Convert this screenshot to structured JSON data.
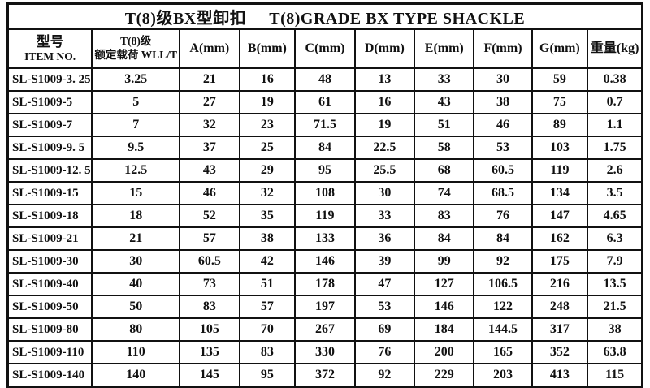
{
  "title": {
    "cn": "T(8)级BX型卸扣",
    "en": "T(8)GRADE BX TYPE SHACKLE"
  },
  "table": {
    "header": {
      "item_no_cn": "型号",
      "item_no_en": "ITEM NO.",
      "wll_cn": "T(8)级",
      "wll_en": "额定载荷 WLL/T",
      "columns": [
        "A(mm)",
        "B(mm)",
        "C(mm)",
        "D(mm)",
        "E(mm)",
        "F(mm)",
        "G(mm)",
        "重量(kg)"
      ]
    },
    "rows": [
      {
        "item_no": "SL-S1009-3. 25",
        "wll": "3.25",
        "a": "21",
        "b": "16",
        "c": "48",
        "d": "13",
        "e": "33",
        "f": "30",
        "g": "59",
        "weight": "0.38"
      },
      {
        "item_no": "SL-S1009-5",
        "wll": "5",
        "a": "27",
        "b": "19",
        "c": "61",
        "d": "16",
        "e": "43",
        "f": "38",
        "g": "75",
        "weight": "0.7"
      },
      {
        "item_no": "SL-S1009-7",
        "wll": "7",
        "a": "32",
        "b": "23",
        "c": "71.5",
        "d": "19",
        "e": "51",
        "f": "46",
        "g": "89",
        "weight": "1.1"
      },
      {
        "item_no": "SL-S1009-9. 5",
        "wll": "9.5",
        "a": "37",
        "b": "25",
        "c": "84",
        "d": "22.5",
        "e": "58",
        "f": "53",
        "g": "103",
        "weight": "1.75"
      },
      {
        "item_no": "SL-S1009-12. 5",
        "wll": "12.5",
        "a": "43",
        "b": "29",
        "c": "95",
        "d": "25.5",
        "e": "68",
        "f": "60.5",
        "g": "119",
        "weight": "2.6"
      },
      {
        "item_no": "SL-S1009-15",
        "wll": "15",
        "a": "46",
        "b": "32",
        "c": "108",
        "d": "30",
        "e": "74",
        "f": "68.5",
        "g": "134",
        "weight": "3.5"
      },
      {
        "item_no": "SL-S1009-18",
        "wll": "18",
        "a": "52",
        "b": "35",
        "c": "119",
        "d": "33",
        "e": "83",
        "f": "76",
        "g": "147",
        "weight": "4.65"
      },
      {
        "item_no": "SL-S1009-21",
        "wll": "21",
        "a": "57",
        "b": "38",
        "c": "133",
        "d": "36",
        "e": "84",
        "f": "84",
        "g": "162",
        "weight": "6.3"
      },
      {
        "item_no": "SL-S1009-30",
        "wll": "30",
        "a": "60.5",
        "b": "42",
        "c": "146",
        "d": "39",
        "e": "99",
        "f": "92",
        "g": "175",
        "weight": "7.9"
      },
      {
        "item_no": "SL-S1009-40",
        "wll": "40",
        "a": "73",
        "b": "51",
        "c": "178",
        "d": "47",
        "e": "127",
        "f": "106.5",
        "g": "216",
        "weight": "13.5"
      },
      {
        "item_no": "SL-S1009-50",
        "wll": "50",
        "a": "83",
        "b": "57",
        "c": "197",
        "d": "53",
        "e": "146",
        "f": "122",
        "g": "248",
        "weight": "21.5"
      },
      {
        "item_no": "SL-S1009-80",
        "wll": "80",
        "a": "105",
        "b": "70",
        "c": "267",
        "d": "69",
        "e": "184",
        "f": "144.5",
        "g": "317",
        "weight": "38"
      },
      {
        "item_no": "SL-S1009-110",
        "wll": "110",
        "a": "135",
        "b": "83",
        "c": "330",
        "d": "76",
        "e": "200",
        "f": "165",
        "g": "352",
        "weight": "63.8"
      },
      {
        "item_no": "SL-S1009-140",
        "wll": "140",
        "a": "145",
        "b": "95",
        "c": "372",
        "d": "92",
        "e": "229",
        "f": "203",
        "g": "413",
        "weight": "115"
      }
    ]
  },
  "colors": {
    "border": "#111111",
    "background": "#ffffff",
    "text": "#111111"
  }
}
